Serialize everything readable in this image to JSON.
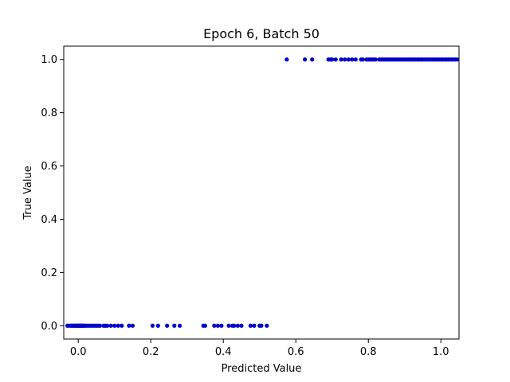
{
  "chart_data": {
    "type": "scatter",
    "title": "Epoch 6, Batch 50",
    "xlabel": "Predicted Value",
    "ylabel": "True Value",
    "xlim": [
      -0.04,
      1.05
    ],
    "ylim": [
      -0.05,
      1.05
    ],
    "xticks": [
      0.0,
      0.2,
      0.4,
      0.6,
      0.8,
      1.0
    ],
    "xtick_labels": [
      "0.0",
      "0.2",
      "0.4",
      "0.6",
      "0.8",
      "1.0"
    ],
    "yticks": [
      0.0,
      0.2,
      0.4,
      0.6,
      0.8,
      1.0
    ],
    "ytick_labels": [
      "0.0",
      "0.2",
      "0.4",
      "0.6",
      "0.8",
      "1.0"
    ],
    "grid": false,
    "marker_color": "#0000cc",
    "series": [
      {
        "x": [
          -0.03,
          -0.025,
          -0.02,
          -0.018,
          -0.015,
          -0.012,
          -0.01,
          -0.008,
          -0.005,
          -0.003,
          0.0,
          0.002,
          0.004,
          0.006,
          0.008,
          0.01,
          0.012,
          0.015,
          0.018,
          0.02,
          0.025,
          0.03,
          0.035,
          0.04,
          0.045,
          0.05,
          0.055,
          0.06,
          0.07,
          0.075,
          0.08,
          0.09,
          0.1,
          0.11,
          0.12,
          0.14,
          0.15,
          0.205,
          0.22,
          0.245,
          0.265,
          0.28,
          0.345,
          0.35,
          0.375,
          0.385,
          0.395,
          0.415,
          0.425,
          0.43,
          0.44,
          0.45,
          0.475,
          0.485,
          0.5,
          0.505,
          0.52
        ],
        "y": [
          0,
          0,
          0,
          0,
          0,
          0,
          0,
          0,
          0,
          0,
          0,
          0,
          0,
          0,
          0,
          0,
          0,
          0,
          0,
          0,
          0,
          0,
          0,
          0,
          0,
          0,
          0,
          0,
          0,
          0,
          0,
          0,
          0,
          0,
          0,
          0,
          0,
          0,
          0,
          0,
          0,
          0,
          0,
          0,
          0,
          0,
          0,
          0,
          0,
          0,
          0,
          0,
          0,
          0,
          0,
          0,
          0
        ]
      },
      {
        "x": [
          0.575,
          0.625,
          0.645,
          0.69,
          0.695,
          0.7,
          0.71,
          0.725,
          0.735,
          0.745,
          0.755,
          0.765,
          0.78,
          0.785,
          0.795,
          0.8,
          0.805,
          0.81,
          0.815,
          0.82,
          0.83,
          0.835,
          0.84,
          0.845,
          0.85,
          0.855,
          0.86,
          0.865,
          0.87,
          0.875,
          0.88,
          0.885,
          0.89,
          0.895,
          0.9,
          0.905,
          0.91,
          0.915,
          0.92,
          0.925,
          0.93,
          0.935,
          0.94,
          0.945,
          0.95,
          0.955,
          0.96,
          0.965,
          0.97,
          0.975,
          0.98,
          0.985,
          0.99,
          0.995,
          1.0,
          1.005,
          1.01,
          1.015,
          1.02,
          1.025,
          1.03,
          1.035,
          1.04,
          1.045
        ],
        "y": [
          1,
          1,
          1,
          1,
          1,
          1,
          1,
          1,
          1,
          1,
          1,
          1,
          1,
          1,
          1,
          1,
          1,
          1,
          1,
          1,
          1,
          1,
          1,
          1,
          1,
          1,
          1,
          1,
          1,
          1,
          1,
          1,
          1,
          1,
          1,
          1,
          1,
          1,
          1,
          1,
          1,
          1,
          1,
          1,
          1,
          1,
          1,
          1,
          1,
          1,
          1,
          1,
          1,
          1,
          1,
          1,
          1,
          1,
          1,
          1,
          1,
          1,
          1,
          1
        ]
      }
    ]
  }
}
